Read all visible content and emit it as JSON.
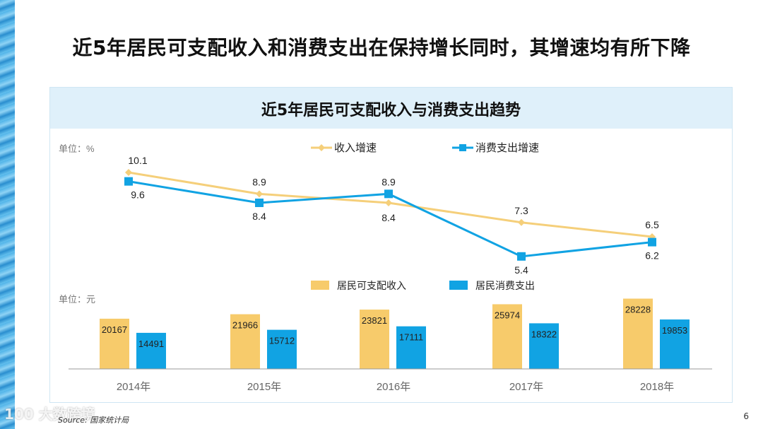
{
  "slide_title": "近5年居民可支配收入和消费支出在保持增长同时，其增速均有所下降",
  "panel_title": "近5年居民可支配收入与消费支出趋势",
  "source": "Source: 国家统计局",
  "watermark": "100 大数跨境",
  "page_number": "6",
  "colors": {
    "income": "#f7cb6b",
    "income_line": "#f5cf7a",
    "spend": "#11a3e3",
    "axis": "#9a9a9a"
  },
  "chart_data": [
    {
      "type": "line",
      "unit_label": "单位：%",
      "categories": [
        "2014年",
        "2015年",
        "2016年",
        "2017年",
        "2018年"
      ],
      "series": [
        {
          "name": "收入增速",
          "values": [
            10.1,
            8.9,
            8.4,
            7.3,
            6.5
          ]
        },
        {
          "name": "消费支出增速",
          "values": [
            9.6,
            8.4,
            8.9,
            5.4,
            6.2
          ]
        }
      ]
    },
    {
      "type": "bar",
      "unit_label": "单位：元",
      "categories": [
        "2014年",
        "2015年",
        "2016年",
        "2017年",
        "2018年"
      ],
      "series": [
        {
          "name": "居民可支配收入",
          "values": [
            20167,
            21966,
            23821,
            25974,
            28228
          ]
        },
        {
          "name": "居民消费支出",
          "values": [
            14491,
            15712,
            17111,
            18322,
            19853
          ]
        }
      ]
    }
  ]
}
